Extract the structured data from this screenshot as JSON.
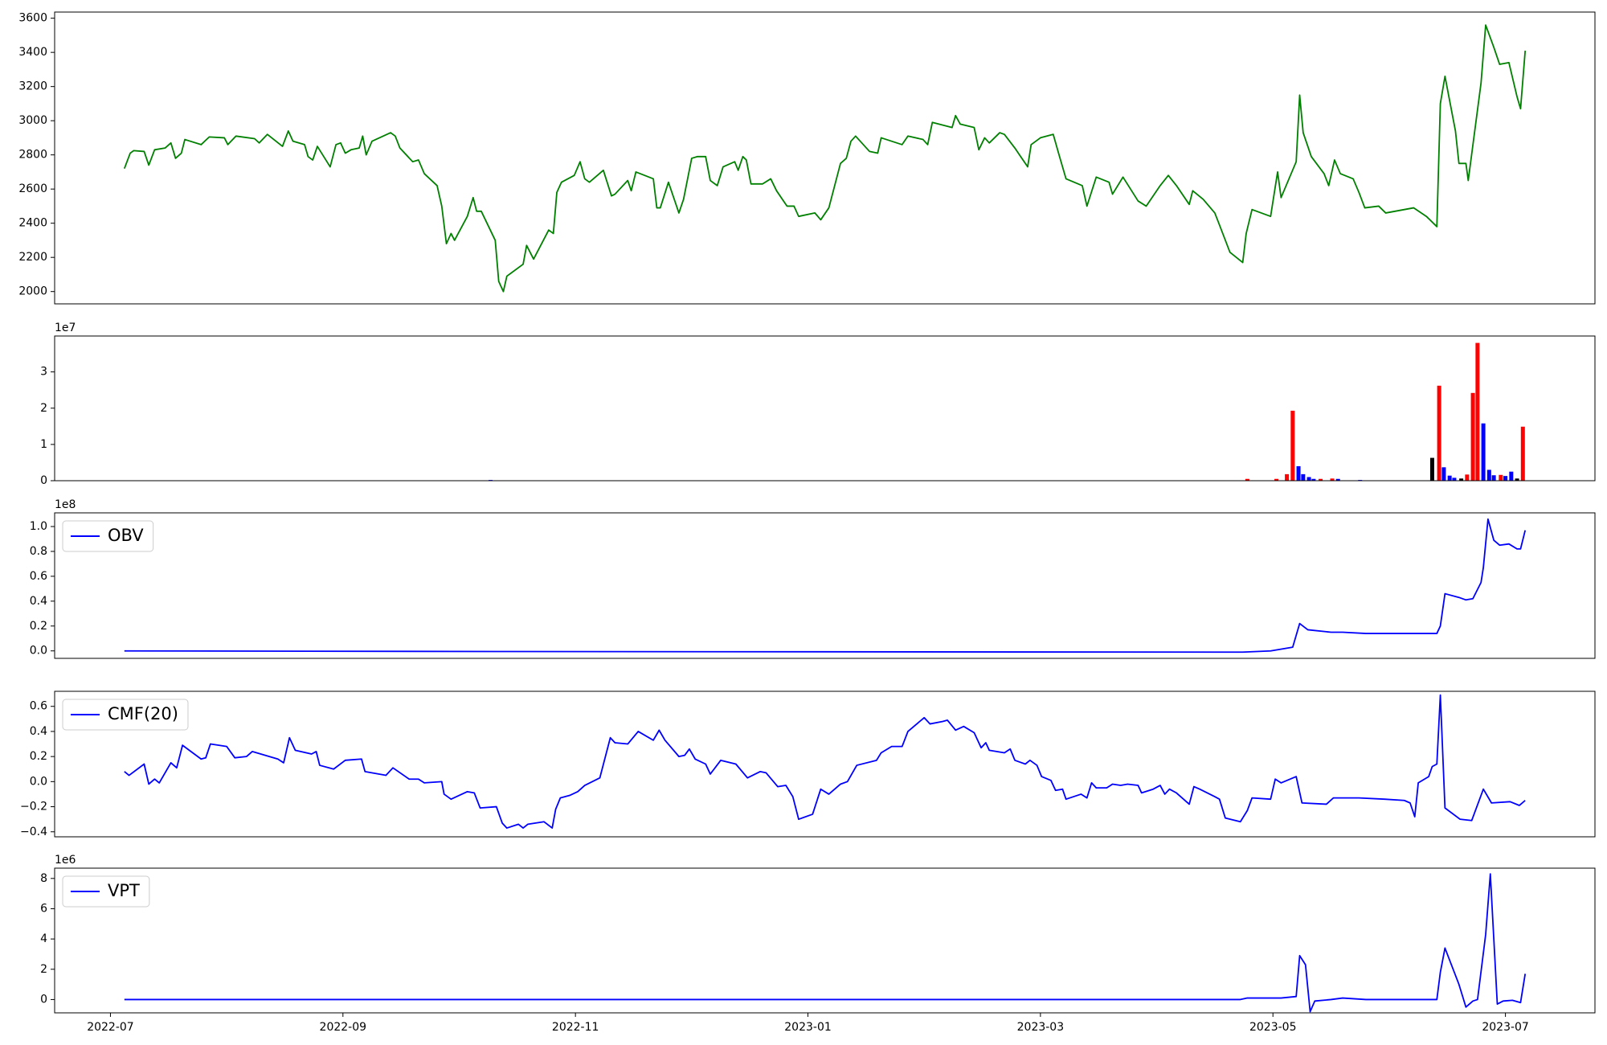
{
  "chart_data": [
    {
      "type": "line",
      "x": [
        0.12,
        0.17,
        0.2,
        0.29,
        0.33,
        0.38,
        0.47,
        0.52,
        0.56,
        0.61,
        0.64,
        0.78,
        0.85,
        0.98,
        1.01,
        1.08,
        1.24,
        1.28,
        1.35,
        1.48,
        1.53,
        1.57,
        1.67,
        1.7,
        1.74,
        1.78,
        1.89,
        1.94,
        1.98,
        2.02,
        2.07,
        2.14,
        2.17,
        2.2,
        2.25,
        2.41,
        2.45,
        2.49,
        2.6,
        2.65,
        2.7,
        2.81,
        2.85,
        2.89,
        2.93,
        2.96,
        3.07,
        3.12,
        3.15,
        3.19,
        3.31,
        3.34,
        3.38,
        3.41,
        3.55,
        3.58,
        3.64,
        3.77,
        3.81,
        3.84,
        3.88,
        3.99,
        4.04,
        4.08,
        4.12,
        4.24,
        4.31,
        4.34,
        4.45,
        4.48,
        4.52,
        4.67,
        4.7,
        4.73,
        4.8,
        4.89,
        4.93,
        5.0,
        5.05,
        5.12,
        5.16,
        5.22,
        5.27,
        5.37,
        5.4,
        5.44,
        5.47,
        5.51,
        5.61,
        5.68,
        5.73,
        5.82,
        5.88,
        5.92,
        6.06,
        6.11,
        6.18,
        6.28,
        6.33,
        6.37,
        6.41,
        6.53,
        6.6,
        6.63,
        6.81,
        6.86,
        6.99,
        7.03,
        7.07,
        7.24,
        7.27,
        7.31,
        7.43,
        7.47,
        7.52,
        7.56,
        7.65,
        7.69,
        7.78,
        7.89,
        7.92,
        8.0,
        8.11,
        8.16,
        8.22,
        8.36,
        8.4,
        8.48,
        8.59,
        8.62,
        8.71,
        8.84,
        8.91,
        9.03,
        9.1,
        9.17,
        9.28,
        9.31,
        9.4,
        9.5,
        9.54,
        9.63,
        9.74,
        9.77,
        9.82,
        9.98,
        10.04,
        10.07,
        10.2,
        10.23,
        10.26,
        10.33,
        10.44,
        10.48,
        10.53,
        10.58,
        10.69,
        10.74,
        10.79,
        10.91,
        10.97,
        11.21,
        11.32,
        11.41,
        11.44,
        11.48,
        11.57,
        11.6,
        11.66,
        11.68,
        11.79,
        11.83,
        11.9,
        11.95,
        12.03,
        12.1,
        12.13,
        12.17
      ],
      "series": [
        {
          "color": "#008000",
          "values": [
            2720,
            2810,
            2825,
            2820,
            2740,
            2830,
            2840,
            2870,
            2780,
            2810,
            2890,
            2860,
            2905,
            2900,
            2860,
            2910,
            2895,
            2870,
            2920,
            2850,
            2940,
            2880,
            2860,
            2790,
            2770,
            2850,
            2730,
            2860,
            2870,
            2810,
            2830,
            2840,
            2910,
            2800,
            2880,
            2930,
            2910,
            2840,
            2760,
            2770,
            2690,
            2620,
            2500,
            2280,
            2340,
            2300,
            2440,
            2550,
            2470,
            2470,
            2300,
            2060,
            2000,
            2090,
            2160,
            2270,
            2190,
            2360,
            2340,
            2580,
            2640,
            2680,
            2760,
            2660,
            2640,
            2710,
            2560,
            2570,
            2650,
            2590,
            2700,
            2660,
            2490,
            2490,
            2640,
            2460,
            2540,
            2780,
            2790,
            2790,
            2650,
            2620,
            2730,
            2760,
            2710,
            2790,
            2770,
            2630,
            2630,
            2660,
            2590,
            2500,
            2500,
            2440,
            2460,
            2420,
            2490,
            2750,
            2780,
            2880,
            2910,
            2820,
            2810,
            2900,
            2860,
            2910,
            2890,
            2860,
            2990,
            2960,
            3030,
            2980,
            2960,
            2830,
            2900,
            2870,
            2930,
            2920,
            2840,
            2730,
            2860,
            2900,
            2920,
            2800,
            2660,
            2620,
            2500,
            2670,
            2640,
            2570,
            2670,
            2530,
            2500,
            2620,
            2680,
            2620,
            2510,
            2590,
            2540,
            2460,
            2390,
            2230,
            2170,
            2340,
            2480,
            2440,
            2700,
            2550,
            2760,
            3150,
            2930,
            2790,
            2690,
            2620,
            2770,
            2690,
            2660,
            2580,
            2490,
            2500,
            2460,
            2490,
            2440,
            2380,
            3100,
            3260,
            2940,
            2750,
            2750,
            2650,
            3220,
            3560,
            3430,
            3330,
            3340,
            3140,
            3070,
            3410
          ]
        }
      ],
      "xlim": [
        -0.48,
        12.77
      ],
      "ylim": [
        1928,
        3636
      ],
      "yticks": [
        2000,
        2200,
        2400,
        2600,
        2800,
        3000,
        3200,
        3400,
        3600
      ]
    },
    {
      "type": "bar",
      "offset_label": "1e7",
      "x": [
        3.27,
        9.78,
        10.03,
        10.12,
        10.17,
        10.22,
        10.26,
        10.31,
        10.35,
        10.41,
        10.51,
        10.56,
        10.75,
        11.37,
        11.43,
        11.47,
        11.52,
        11.56,
        11.62,
        11.67,
        11.72,
        11.76,
        11.81,
        11.86,
        11.9,
        11.96,
        12.0,
        12.05,
        12.1,
        12.15
      ],
      "values": [
        0.02,
        0.05,
        0.05,
        0.18,
        1.93,
        0.4,
        0.18,
        0.1,
        0.05,
        0.05,
        0.06,
        0.05,
        0.02,
        0.63,
        2.62,
        0.37,
        0.14,
        0.08,
        0.06,
        0.17,
        2.42,
        3.8,
        1.58,
        0.3,
        0.15,
        0.16,
        0.13,
        0.25,
        0.06,
        1.49
      ],
      "colors": [
        "#0000ff",
        "#ff0000",
        "#ff0000",
        "#ff0000",
        "#ff0000",
        "#0000ff",
        "#0000ff",
        "#0000ff",
        "#0000ff",
        "#ff0000",
        "#ff0000",
        "#0000ff",
        "#0000ff",
        "#000000",
        "#ff0000",
        "#0000ff",
        "#0000ff",
        "#0000ff",
        "#000000",
        "#ff0000",
        "#ff0000",
        "#ff0000",
        "#0000ff",
        "#0000ff",
        "#0000ff",
        "#ff0000",
        "#0000ff",
        "#0000ff",
        "#000000",
        "#ff0000"
      ],
      "xlim": [
        -0.48,
        12.77
      ],
      "ylim": [
        0,
        3.99
      ],
      "yticks": [
        0,
        1,
        2,
        3
      ]
    },
    {
      "type": "line",
      "offset_label": "1e8",
      "x": [
        0.12,
        3.34,
        9.63,
        9.74,
        9.98,
        10.17,
        10.23,
        10.3,
        10.5,
        10.6,
        10.8,
        11.0,
        11.41,
        11.44,
        11.48,
        11.6,
        11.66,
        11.72,
        11.79,
        11.81,
        11.85,
        11.9,
        11.95,
        12.03,
        12.1,
        12.13,
        12.17
      ],
      "series": [
        {
          "name": "OBV",
          "color": "#0000ff",
          "values": [
            0.0,
            -0.005,
            -0.01,
            -0.01,
            0.0,
            0.03,
            0.22,
            0.17,
            0.15,
            0.15,
            0.14,
            0.14,
            0.14,
            0.2,
            0.46,
            0.43,
            0.41,
            0.42,
            0.55,
            0.67,
            1.06,
            0.89,
            0.85,
            0.86,
            0.82,
            0.82,
            0.97
          ]
        }
      ],
      "xlim": [
        -0.48,
        12.77
      ],
      "ylim": [
        -0.06,
        1.11
      ],
      "yticks": [
        {
          "value": 0,
          "label": "0.0"
        },
        {
          "value": 0.2,
          "label": "0.2"
        },
        {
          "value": 0.4,
          "label": "0.4"
        },
        {
          "value": 0.6,
          "label": "0.6"
        },
        {
          "value": 0.8,
          "label": "0.8"
        },
        {
          "value": 1,
          "label": "1.0"
        }
      ]
    },
    {
      "type": "line",
      "x": [
        0.12,
        0.16,
        0.29,
        0.33,
        0.38,
        0.42,
        0.52,
        0.57,
        0.62,
        0.78,
        0.82,
        0.86,
        1.0,
        1.07,
        1.17,
        1.22,
        1.44,
        1.49,
        1.54,
        1.59,
        1.73,
        1.77,
        1.8,
        1.92,
        2.02,
        2.16,
        2.19,
        2.37,
        2.43,
        2.57,
        2.65,
        2.7,
        2.85,
        2.87,
        2.93,
        3.07,
        3.13,
        3.18,
        3.32,
        3.37,
        3.41,
        3.51,
        3.55,
        3.59,
        3.73,
        3.8,
        3.83,
        3.87,
        3.95,
        4.02,
        4.08,
        4.21,
        4.3,
        4.34,
        4.45,
        4.54,
        4.67,
        4.72,
        4.77,
        4.89,
        4.94,
        4.98,
        5.03,
        5.12,
        5.16,
        5.25,
        5.38,
        5.48,
        5.59,
        5.64,
        5.74,
        5.81,
        5.87,
        5.92,
        6.04,
        6.11,
        6.18,
        6.28,
        6.34,
        6.42,
        6.59,
        6.63,
        6.72,
        6.81,
        6.86,
        7.0,
        7.05,
        7.16,
        7.2,
        7.27,
        7.34,
        7.43,
        7.49,
        7.53,
        7.56,
        7.69,
        7.74,
        7.78,
        7.87,
        7.91,
        7.97,
        8.01,
        8.09,
        8.13,
        8.19,
        8.22,
        8.35,
        8.4,
        8.44,
        8.48,
        8.57,
        8.62,
        8.69,
        8.75,
        8.84,
        8.87,
        8.97,
        9.03,
        9.07,
        9.11,
        9.17,
        9.28,
        9.32,
        9.37,
        9.5,
        9.54,
        9.59,
        9.72,
        9.78,
        9.82,
        9.98,
        10.02,
        10.07,
        10.2,
        10.25,
        10.46,
        10.52,
        10.74,
        10.96,
        11.13,
        11.18,
        11.22,
        11.25,
        11.34,
        11.37,
        11.41,
        11.44,
        11.48,
        11.61,
        11.71,
        11.81,
        11.88,
        12.04,
        12.12,
        12.17
      ],
      "series": [
        {
          "name": "CMF(20)",
          "color": "#0000ff",
          "values": [
            0.08,
            0.05,
            0.14,
            -0.02,
            0.02,
            -0.01,
            0.15,
            0.11,
            0.29,
            0.18,
            0.19,
            0.3,
            0.28,
            0.19,
            0.2,
            0.24,
            0.18,
            0.15,
            0.35,
            0.25,
            0.22,
            0.24,
            0.13,
            0.1,
            0.17,
            0.18,
            0.08,
            0.05,
            0.11,
            0.02,
            0.02,
            -0.01,
            0.0,
            -0.1,
            -0.14,
            -0.08,
            -0.09,
            -0.21,
            -0.2,
            -0.33,
            -0.37,
            -0.34,
            -0.37,
            -0.34,
            -0.32,
            -0.37,
            -0.22,
            -0.13,
            -0.11,
            -0.08,
            -0.03,
            0.03,
            0.35,
            0.31,
            0.3,
            0.4,
            0.33,
            0.41,
            0.33,
            0.2,
            0.21,
            0.26,
            0.18,
            0.14,
            0.06,
            0.17,
            0.14,
            0.03,
            0.08,
            0.07,
            -0.04,
            -0.03,
            -0.12,
            -0.3,
            -0.26,
            -0.06,
            -0.1,
            -0.02,
            0.0,
            0.13,
            0.17,
            0.23,
            0.28,
            0.28,
            0.4,
            0.51,
            0.46,
            0.48,
            0.49,
            0.41,
            0.44,
            0.39,
            0.27,
            0.31,
            0.25,
            0.23,
            0.26,
            0.17,
            0.14,
            0.17,
            0.13,
            0.04,
            0.01,
            -0.07,
            -0.06,
            -0.14,
            -0.1,
            -0.13,
            -0.01,
            -0.05,
            -0.05,
            -0.02,
            -0.03,
            -0.02,
            -0.03,
            -0.09,
            -0.06,
            -0.03,
            -0.1,
            -0.06,
            -0.09,
            -0.18,
            -0.04,
            -0.06,
            -0.12,
            -0.14,
            -0.29,
            -0.32,
            -0.23,
            -0.13,
            -0.14,
            0.02,
            -0.01,
            0.04,
            -0.17,
            -0.18,
            -0.13,
            -0.13,
            -0.14,
            -0.15,
            -0.17,
            -0.28,
            -0.01,
            0.04,
            0.12,
            0.14,
            0.69,
            -0.21,
            -0.3,
            -0.31,
            -0.06,
            -0.17,
            -0.16,
            -0.19,
            -0.15
          ]
        }
      ],
      "xlim": [
        -0.48,
        12.77
      ],
      "ylim": [
        -0.44,
        0.72
      ],
      "yticks": [
        {
          "value": -0.4,
          "label": "−0.4"
        },
        {
          "value": -0.2,
          "label": "−0.2"
        },
        {
          "value": 0,
          "label": "0.0"
        },
        {
          "value": 0.2,
          "label": "0.2"
        },
        {
          "value": 0.4,
          "label": "0.4"
        },
        {
          "value": 0.6,
          "label": "0.6"
        }
      ]
    },
    {
      "type": "line",
      "offset_label": "1e6",
      "x": [
        0.12,
        9.72,
        9.78,
        10.07,
        10.2,
        10.23,
        10.28,
        10.32,
        10.36,
        10.5,
        10.6,
        10.8,
        11.41,
        11.44,
        11.48,
        11.6,
        11.66,
        11.72,
        11.76,
        11.83,
        11.87,
        11.93,
        11.98,
        12.06,
        12.13,
        12.17
      ],
      "series": [
        {
          "name": "VPT",
          "color": "#0000ff",
          "values": [
            0,
            0,
            0.1,
            0.1,
            0.2,
            2.9,
            2.3,
            -0.8,
            -0.1,
            0,
            0.1,
            0,
            0,
            1.8,
            3.4,
            1.0,
            -0.5,
            -0.1,
            0.0,
            4.3,
            8.3,
            -0.3,
            -0.1,
            -0.05,
            -0.2,
            1.7
          ]
        }
      ],
      "xlim": [
        -0.48,
        12.77
      ],
      "ylim": [
        -0.88,
        8.68
      ],
      "yticks": [
        0,
        2,
        4,
        6,
        8
      ],
      "xticks": [
        {
          "value": 0,
          "label": "2022-07"
        },
        {
          "value": 2,
          "label": "2022-09"
        },
        {
          "value": 4,
          "label": "2022-11"
        },
        {
          "value": 6,
          "label": "2023-01"
        },
        {
          "value": 8,
          "label": "2023-03"
        },
        {
          "value": 10,
          "label": "2023-05"
        },
        {
          "value": 12,
          "label": "2023-07"
        }
      ]
    }
  ]
}
